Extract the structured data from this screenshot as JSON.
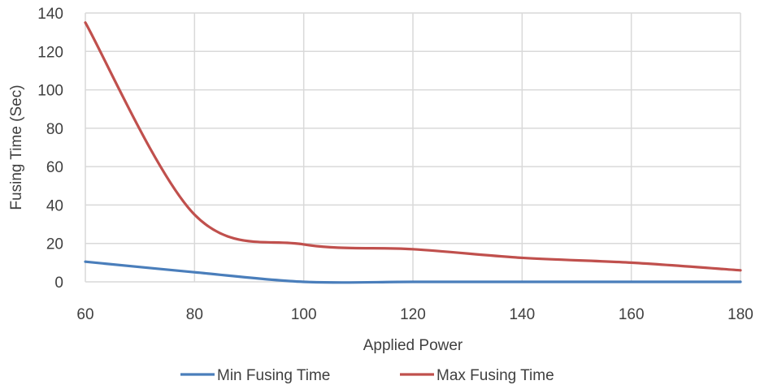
{
  "chart_data": {
    "type": "line",
    "title": "",
    "xlabel": "Applied Power",
    "ylabel": "Fusing Time (Sec)",
    "xlim": [
      60,
      180
    ],
    "ylim": [
      0,
      140
    ],
    "x_ticks": [
      "60",
      "80",
      "100",
      "120",
      "140",
      "160",
      "180"
    ],
    "y_ticks": [
      "0",
      "20",
      "40",
      "60",
      "80",
      "100",
      "120",
      "140"
    ],
    "grid": true,
    "legend_position": "bottom",
    "series": [
      {
        "name": "Min Fusing Time",
        "color": "#4a7ebb",
        "x": [
          60,
          80,
          100,
          120,
          140,
          160,
          180
        ],
        "y": [
          10.5,
          5,
          0,
          0,
          0,
          0,
          0
        ]
      },
      {
        "name": "Max Fusing Time",
        "color": "#c0504d",
        "x": [
          60,
          80,
          100,
          120,
          140,
          160,
          180
        ],
        "y": [
          135,
          35,
          19.5,
          17,
          12.5,
          10,
          6
        ]
      }
    ]
  }
}
